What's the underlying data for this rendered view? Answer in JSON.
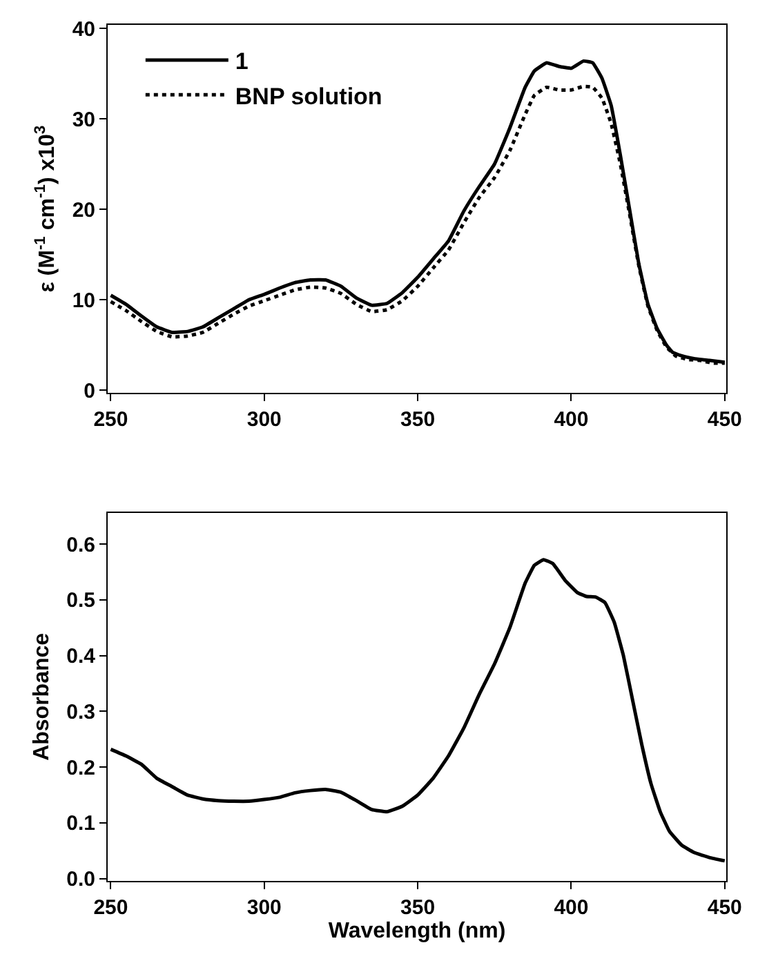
{
  "chart_data": [
    {
      "type": "line",
      "ylabel": "ε (M$^{-1}$ cm$^{-1}$) x10$^{3}$",
      "xlim": [
        249,
        450.5
      ],
      "xticks": [
        250,
        300,
        350,
        400,
        450
      ],
      "ylim": [
        -0.3,
        40.4
      ],
      "yticks": [
        0,
        10,
        20,
        30,
        40
      ],
      "legend": "top left",
      "marker": "none",
      "x": [
        250,
        255,
        260,
        265,
        270,
        275,
        280,
        285,
        290,
        295,
        300,
        305,
        310,
        315,
        320,
        325,
        330,
        335,
        340,
        345,
        350,
        355,
        360,
        365,
        370,
        375,
        380,
        385,
        388,
        392,
        396,
        400,
        404,
        407,
        410,
        413,
        416,
        419,
        422,
        425,
        428,
        431,
        433,
        436,
        440,
        445,
        450
      ],
      "series": [
        {
          "name": "1",
          "color": "#000000",
          "line_style": "solid",
          "values": [
            10.5,
            9.5,
            8.2,
            7.0,
            6.4,
            6.5,
            7.0,
            8.0,
            9.0,
            10.0,
            10.6,
            11.3,
            11.9,
            12.2,
            12.2,
            11.5,
            10.2,
            9.4,
            9.6,
            10.8,
            12.5,
            14.5,
            16.5,
            19.8,
            22.5,
            25.0,
            29.0,
            33.5,
            35.3,
            36.2,
            35.8,
            35.6,
            36.4,
            36.2,
            34.5,
            31.5,
            26.0,
            20.0,
            14.0,
            9.5,
            6.8,
            5.0,
            4.2,
            3.8,
            3.5,
            3.3,
            3.1
          ]
        },
        {
          "name": "BNP solution",
          "color": "#000000",
          "line_style": "dotted",
          "x": [
            250,
            255,
            260,
            265,
            270,
            275,
            280,
            285,
            290,
            295,
            300,
            305,
            310,
            315,
            320,
            325,
            330,
            335,
            340,
            345,
            350,
            355,
            360,
            365,
            370,
            375,
            380,
            385,
            388,
            392,
            396,
            400,
            404,
            407,
            410,
            413,
            416,
            419,
            422,
            425,
            428,
            431,
            434,
            438,
            442,
            446,
            450
          ],
          "values": [
            9.8,
            8.8,
            7.6,
            6.5,
            5.9,
            6.0,
            6.4,
            7.4,
            8.4,
            9.3,
            9.9,
            10.5,
            11.1,
            11.4,
            11.3,
            10.7,
            9.5,
            8.7,
            8.9,
            9.9,
            11.5,
            13.5,
            15.5,
            18.5,
            21.3,
            23.5,
            26.5,
            30.5,
            32.6,
            33.5,
            33.2,
            33.2,
            33.6,
            33.5,
            32.3,
            29.5,
            25.0,
            19.5,
            13.8,
            9.3,
            6.6,
            4.8,
            3.8,
            3.4,
            3.3,
            3.0,
            3.0
          ]
        }
      ]
    },
    {
      "type": "line",
      "xlabel": "Wavelength (nm)",
      "ylabel": "Absorbance",
      "xlim": [
        249,
        450.5
      ],
      "xticks": [
        250,
        300,
        350,
        400,
        450
      ],
      "ylim": [
        -0.004,
        0.656
      ],
      "yticks": [
        {
          "value": 0,
          "label": "0.0"
        },
        0.1,
        0.2,
        0.3,
        0.4,
        0.5,
        0.6
      ],
      "legend": false,
      "marker": "none",
      "line_style": "solid",
      "x": [
        250,
        255,
        260,
        265,
        270,
        275,
        280,
        285,
        290,
        295,
        300,
        305,
        310,
        315,
        320,
        325,
        330,
        335,
        340,
        345,
        350,
        355,
        360,
        365,
        370,
        375,
        380,
        385,
        388,
        391,
        394,
        398,
        402,
        405,
        408,
        411,
        414,
        417,
        420,
        423,
        426,
        429,
        432,
        436,
        440,
        445,
        450
      ],
      "series": [
        {
          "color": "#000000",
          "values": [
            0.232,
            0.22,
            0.205,
            0.18,
            0.165,
            0.15,
            0.143,
            0.14,
            0.139,
            0.139,
            0.142,
            0.146,
            0.154,
            0.158,
            0.16,
            0.155,
            0.14,
            0.124,
            0.12,
            0.13,
            0.15,
            0.18,
            0.22,
            0.27,
            0.33,
            0.385,
            0.45,
            0.53,
            0.562,
            0.572,
            0.565,
            0.535,
            0.513,
            0.506,
            0.505,
            0.495,
            0.46,
            0.4,
            0.32,
            0.24,
            0.17,
            0.12,
            0.085,
            0.06,
            0.047,
            0.038,
            0.032
          ]
        }
      ]
    }
  ]
}
